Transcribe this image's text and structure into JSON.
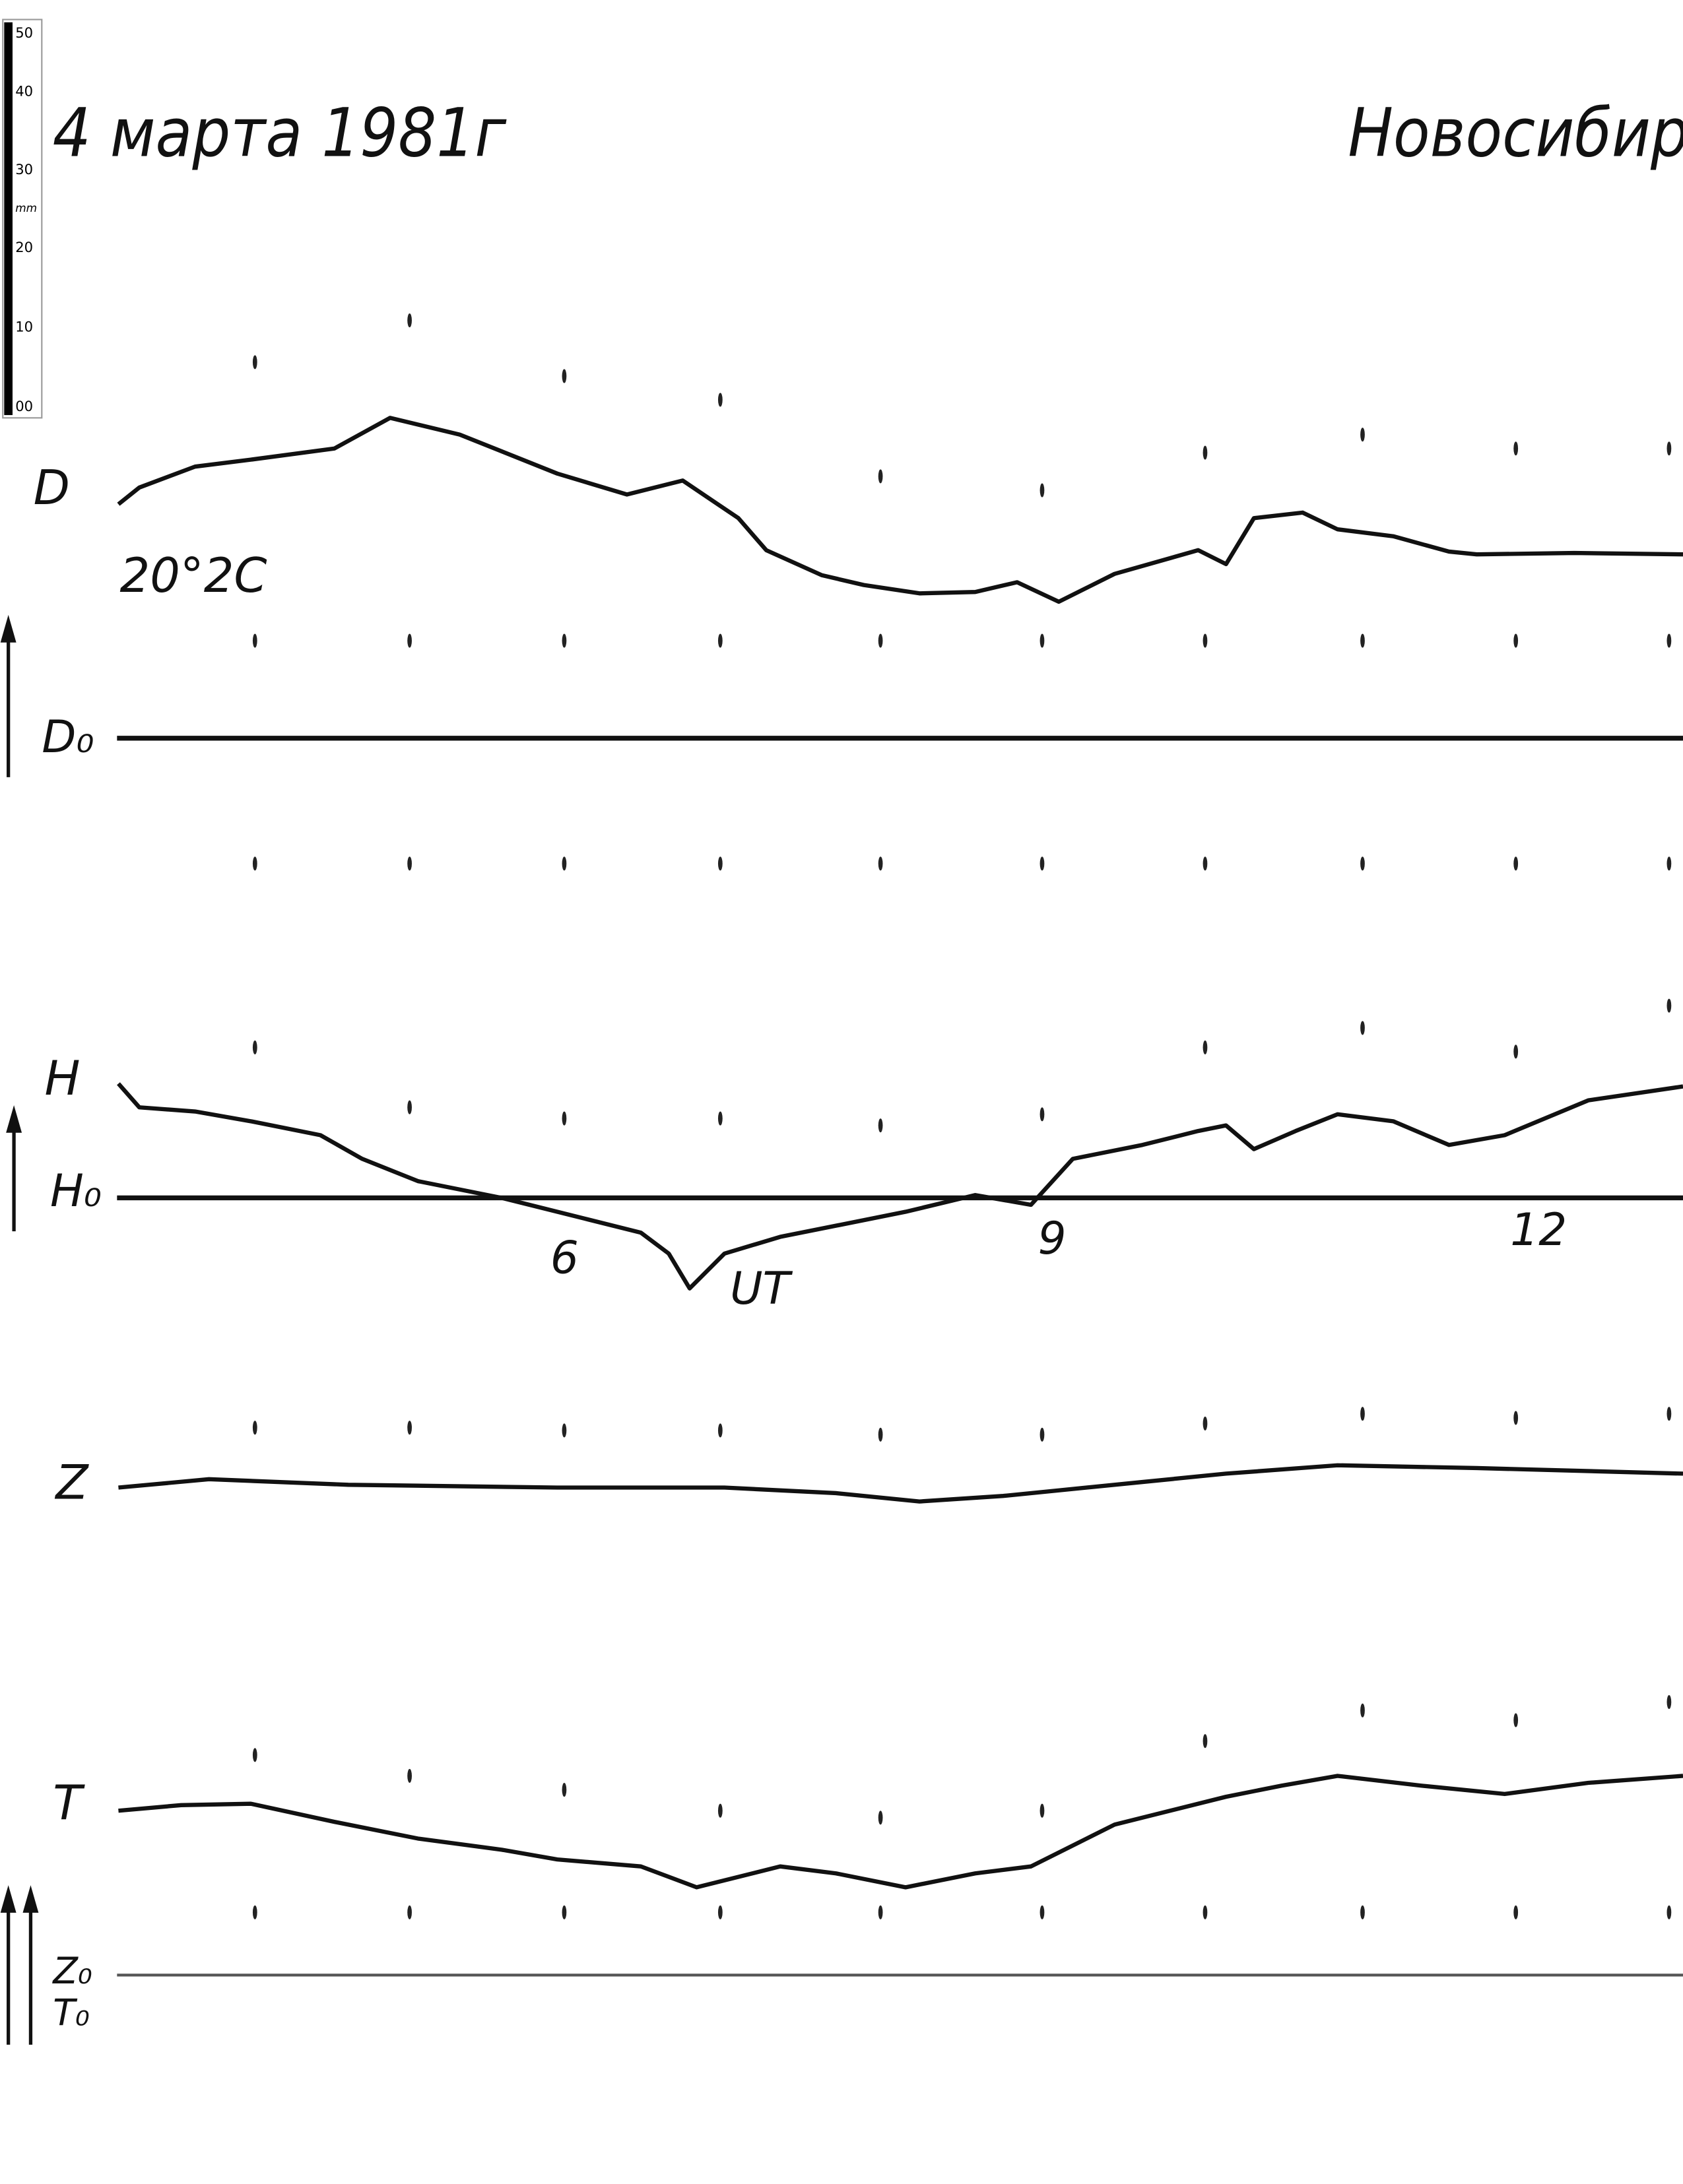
{
  "header": {
    "date": "4 марта 1981г",
    "station": "Новосибирс"
  },
  "ruler": {
    "labels": [
      "50",
      "40",
      "30",
      "20",
      "10",
      "00"
    ],
    "unit": "mm"
  },
  "traces": {
    "d": {
      "label": "D",
      "baseline": "D₀",
      "note": "20°2C"
    },
    "h": {
      "label": "H",
      "baseline": "H₀"
    },
    "z": {
      "label": "Z"
    },
    "t": {
      "label": "T"
    },
    "zt_baseline": {
      "z": "Z₀",
      "t": "T₀"
    }
  },
  "time_axis": {
    "labels": [
      "6",
      "9",
      "12"
    ],
    "unit": "UT"
  }
}
